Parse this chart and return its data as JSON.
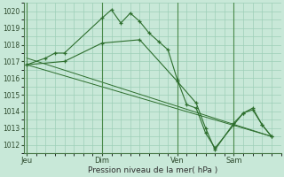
{
  "background_color": "#c8e8d8",
  "grid_color": "#9dcfb8",
  "line_color": "#2d6e2d",
  "xlabel": "Pression niveau de la mer( hPa )",
  "ylim": [
    1011.5,
    1020.5
  ],
  "yticks": [
    1012,
    1013,
    1014,
    1015,
    1016,
    1017,
    1018,
    1019,
    1020
  ],
  "xtick_labels": [
    "Jeu",
    "Dim",
    "Ven",
    "Sam"
  ],
  "series1_x": [
    0,
    2,
    3,
    4,
    8,
    9,
    10,
    11,
    12,
    13,
    14,
    15,
    16,
    17,
    18,
    19,
    20,
    22,
    23,
    24,
    25,
    26
  ],
  "series1_y": [
    1016.8,
    1017.2,
    1017.5,
    1017.5,
    1019.6,
    1020.1,
    1019.3,
    1019.9,
    1019.4,
    1018.7,
    1018.2,
    1017.7,
    1015.9,
    1014.4,
    1014.2,
    1012.7,
    1011.8,
    1013.2,
    1013.9,
    1014.2,
    1013.2,
    1012.5
  ],
  "series2_x": [
    0,
    4,
    8,
    12,
    16,
    18,
    19,
    20,
    22,
    23,
    24,
    25,
    26
  ],
  "series2_y": [
    1016.8,
    1017.0,
    1018.1,
    1018.3,
    1015.8,
    1014.5,
    1013.0,
    1011.7,
    1013.3,
    1013.9,
    1014.1,
    1013.2,
    1012.5
  ],
  "trend_x": [
    0,
    26
  ],
  "trend_y": [
    1017.2,
    1012.5
  ],
  "trend2_x": [
    0,
    26
  ],
  "trend2_y": [
    1016.8,
    1012.5
  ],
  "xlim": [
    -0.3,
    27.0
  ]
}
